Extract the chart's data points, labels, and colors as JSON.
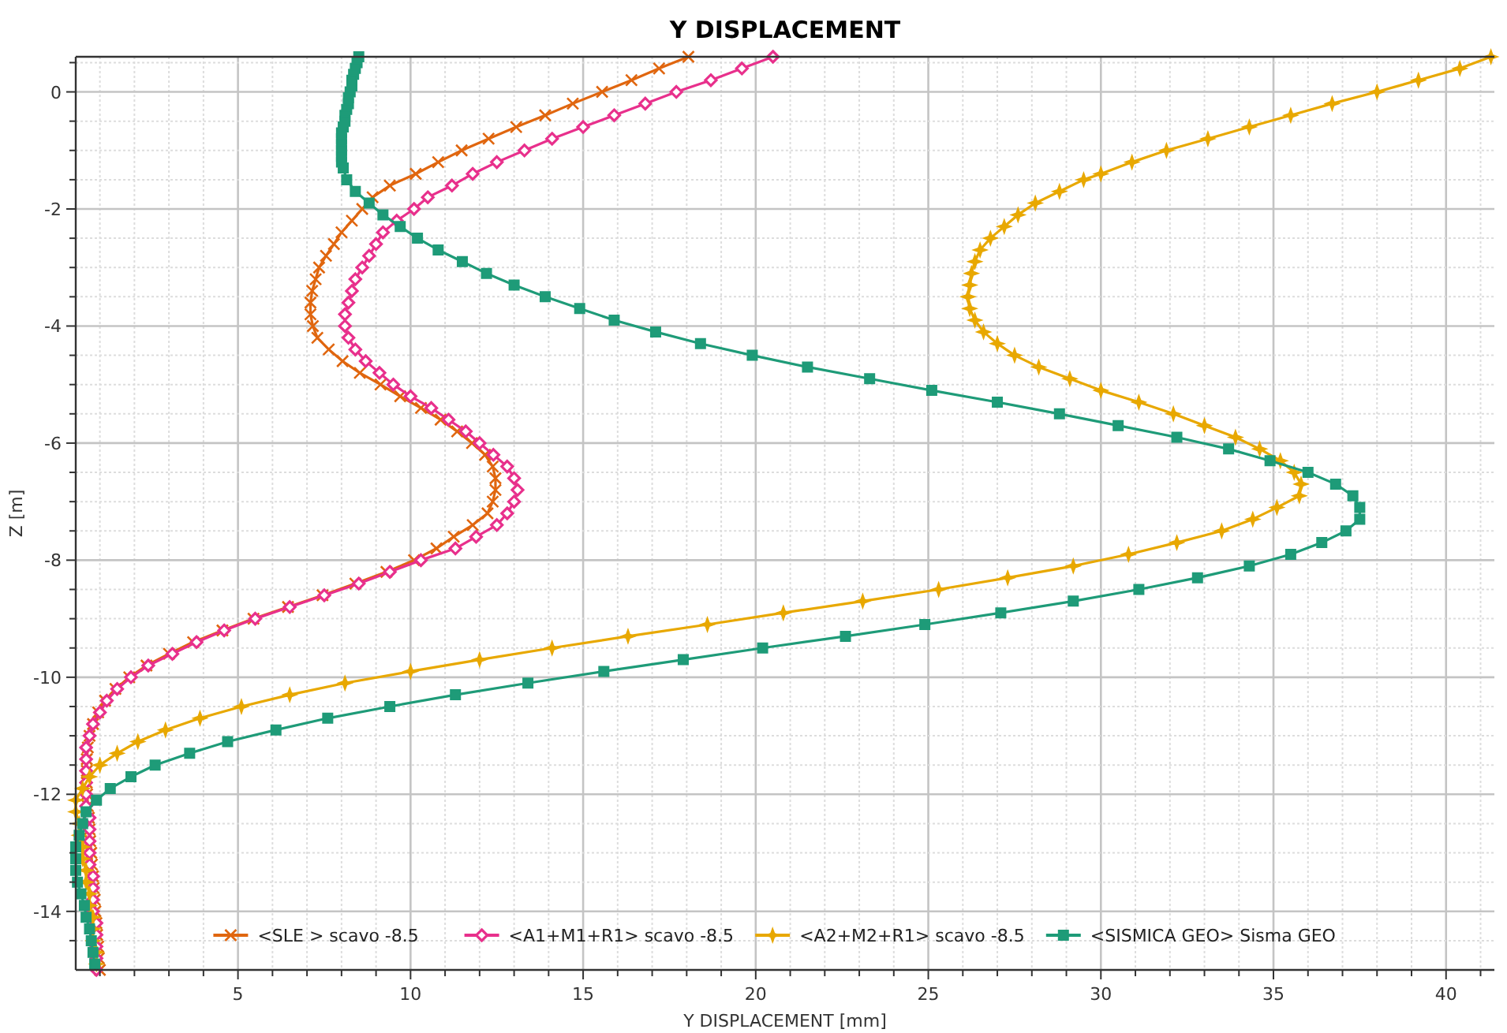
{
  "chart_data": {
    "type": "line",
    "title": "Y DISPLACEMENT",
    "xlabel": "Y DISPLACEMENT [mm]",
    "ylabel": "Z [m]",
    "xlim": [
      0.3,
      41.4
    ],
    "ylim": [
      -15,
      0.6
    ],
    "xticks": [
      {
        "value": 1,
        "label": null
      },
      {
        "value": 2,
        "label": null
      },
      {
        "value": 3,
        "label": null
      },
      {
        "value": 4,
        "label": null
      },
      5,
      {
        "value": 6,
        "label": null
      },
      {
        "value": 7,
        "label": null
      },
      {
        "value": 8,
        "label": null
      },
      {
        "value": 9,
        "label": null
      },
      10,
      {
        "value": 11,
        "label": null
      },
      {
        "value": 12,
        "label": null
      },
      {
        "value": 13,
        "label": null
      },
      {
        "value": 14,
        "label": null
      },
      15,
      {
        "value": 16,
        "label": null
      },
      {
        "value": 17,
        "label": null
      },
      {
        "value": 18,
        "label": null
      },
      {
        "value": 19,
        "label": null
      },
      20,
      {
        "value": 21,
        "label": null
      },
      {
        "value": 22,
        "label": null
      },
      {
        "value": 23,
        "label": null
      },
      {
        "value": 24,
        "label": null
      },
      25,
      {
        "value": 26,
        "label": null
      },
      {
        "value": 27,
        "label": null
      },
      {
        "value": 28,
        "label": null
      },
      {
        "value": 29,
        "label": null
      },
      30,
      {
        "value": 31,
        "label": null
      },
      {
        "value": 32,
        "label": null
      },
      {
        "value": 33,
        "label": null
      },
      {
        "value": 34,
        "label": null
      },
      35,
      {
        "value": 36,
        "label": null
      },
      {
        "value": 37,
        "label": null
      },
      {
        "value": 38,
        "label": null
      },
      {
        "value": 39,
        "label": null
      },
      40,
      {
        "value": 41,
        "label": null
      }
    ],
    "yticks": [
      {
        "value": -14.5,
        "label": null
      },
      -14,
      {
        "value": -13.5,
        "label": null
      },
      {
        "value": -13,
        "label": null
      },
      {
        "value": -12.5,
        "label": null
      },
      -12,
      {
        "value": -11.5,
        "label": null
      },
      {
        "value": -11,
        "label": null
      },
      {
        "value": -10.5,
        "label": null
      },
      -10,
      {
        "value": -9.5,
        "label": null
      },
      {
        "value": -9,
        "label": null
      },
      {
        "value": -8.5,
        "label": null
      },
      -8,
      {
        "value": -7.5,
        "label": null
      },
      {
        "value": -7,
        "label": null
      },
      {
        "value": -6.5,
        "label": null
      },
      -6,
      {
        "value": -5.5,
        "label": null
      },
      {
        "value": -5,
        "label": null
      },
      {
        "value": -4.5,
        "label": null
      },
      -4,
      {
        "value": -3.5,
        "label": null
      },
      {
        "value": -3,
        "label": null
      },
      {
        "value": -2.5,
        "label": null
      },
      -2,
      {
        "value": -1.5,
        "label": null
      },
      {
        "value": -1,
        "label": null
      },
      {
        "value": -0.5,
        "label": null
      },
      0,
      {
        "value": 0.5,
        "label": null
      }
    ],
    "grid": true,
    "legend": "bottom",
    "line_style": "solid",
    "series": [
      {
        "name": "<SLE > scavo -8.5",
        "color": "#e0660f",
        "marker": "cross",
        "x": [
          18.05,
          17.2,
          16.4,
          15.55,
          14.7,
          13.9,
          13.06,
          12.26,
          11.48,
          10.8,
          10.15,
          9.4,
          8.9,
          8.6,
          8.3,
          8.0,
          7.78,
          7.55,
          7.35,
          7.25,
          7.15,
          7.1,
          7.1,
          7.17,
          7.3,
          7.63,
          8.03,
          8.53,
          9.13,
          9.7,
          10.3,
          10.87,
          11.35,
          11.78,
          12.16,
          12.38,
          12.46,
          12.46,
          12.38,
          12.23,
          11.8,
          11.25,
          10.75,
          10.1,
          9.3,
          8.4,
          7.45,
          6.45,
          5.45,
          4.55,
          3.7,
          3.0,
          2.35,
          1.85,
          1.45,
          1.15,
          0.95,
          0.8,
          0.7,
          0.65,
          0.62,
          0.62,
          0.62,
          0.63,
          0.65,
          0.68,
          0.7,
          0.72,
          0.75,
          0.77,
          0.8,
          0.82,
          0.85,
          0.87,
          0.9,
          0.92,
          0.95,
          0.97,
          1.0
        ],
        "values": [
          0.6,
          0.4,
          0.2,
          0,
          -0.2,
          -0.4,
          -0.6,
          -0.8,
          -1.0,
          -1.2,
          -1.4,
          -1.6,
          -1.8,
          -2.0,
          -2.2,
          -2.4,
          -2.6,
          -2.8,
          -3.0,
          -3.2,
          -3.4,
          -3.6,
          -3.8,
          -4.0,
          -4.2,
          -4.4,
          -4.6,
          -4.8,
          -5.0,
          -5.2,
          -5.4,
          -5.6,
          -5.8,
          -6.0,
          -6.2,
          -6.4,
          -6.6,
          -6.8,
          -7.0,
          -7.2,
          -7.4,
          -7.6,
          -7.8,
          -8.0,
          -8.2,
          -8.4,
          -8.6,
          -8.8,
          -9.0,
          -9.2,
          -9.4,
          -9.6,
          -9.8,
          -10.0,
          -10.2,
          -10.4,
          -10.6,
          -10.8,
          -11.0,
          -11.2,
          -11.4,
          -11.6,
          -11.8,
          -12.0,
          -12.2,
          -12.4,
          -12.6,
          -12.8,
          -13.0,
          -13.2,
          -13.4,
          -13.6,
          -13.8,
          -14.0,
          -14.2,
          -14.4,
          -14.6,
          -14.8,
          -15.0
        ]
      },
      {
        "name": "<A1+M1+R1> scavo -8.5",
        "color": "#e8308c",
        "marker": "diamond",
        "x": [
          20.5,
          19.6,
          18.7,
          17.7,
          16.8,
          15.9,
          15.0,
          14.1,
          13.3,
          12.5,
          11.8,
          11.2,
          10.5,
          10.1,
          9.6,
          9.2,
          9.0,
          8.8,
          8.6,
          8.4,
          8.3,
          8.2,
          8.1,
          8.1,
          8.2,
          8.4,
          8.7,
          9.1,
          9.5,
          10.0,
          10.6,
          11.1,
          11.6,
          12.0,
          12.4,
          12.8,
          13.0,
          13.1,
          13.0,
          12.8,
          12.5,
          11.9,
          11.3,
          10.3,
          9.4,
          8.5,
          7.5,
          6.5,
          5.5,
          4.6,
          3.8,
          3.1,
          2.4,
          1.9,
          1.5,
          1.2,
          1.0,
          0.8,
          0.7,
          0.6,
          0.6,
          0.6,
          0.6,
          0.6,
          0.6,
          0.7,
          0.7,
          0.7,
          0.7,
          0.7,
          0.8,
          0.8,
          0.8,
          0.8,
          0.9,
          0.9,
          0.9,
          0.9,
          0.9
        ],
        "values": [
          0.6,
          0.4,
          0.2,
          0,
          -0.2,
          -0.4,
          -0.6,
          -0.8,
          -1.0,
          -1.2,
          -1.4,
          -1.6,
          -1.8,
          -2.0,
          -2.2,
          -2.4,
          -2.6,
          -2.8,
          -3.0,
          -3.2,
          -3.4,
          -3.6,
          -3.8,
          -4.0,
          -4.2,
          -4.4,
          -4.6,
          -4.8,
          -5.0,
          -5.2,
          -5.4,
          -5.6,
          -5.8,
          -6.0,
          -6.2,
          -6.4,
          -6.6,
          -6.8,
          -7.0,
          -7.2,
          -7.4,
          -7.6,
          -7.8,
          -8.0,
          -8.2,
          -8.4,
          -8.6,
          -8.8,
          -9.0,
          -9.2,
          -9.4,
          -9.6,
          -9.8,
          -10.0,
          -10.2,
          -10.4,
          -10.6,
          -10.8,
          -11.0,
          -11.2,
          -11.4,
          -11.6,
          -11.8,
          -12.0,
          -12.2,
          -12.4,
          -12.6,
          -12.8,
          -13.0,
          -13.2,
          -13.4,
          -13.6,
          -13.8,
          -14.0,
          -14.2,
          -14.4,
          -14.6,
          -14.8,
          -15.0
        ]
      },
      {
        "name": "<A2+M2+R1> scavo -8.5",
        "color": "#e8a800",
        "marker": "star",
        "x": [
          41.3,
          40.4,
          39.2,
          38.0,
          36.7,
          35.5,
          34.3,
          33.1,
          31.9,
          30.9,
          30.0,
          29.5,
          28.8,
          28.1,
          27.6,
          27.2,
          26.8,
          26.5,
          26.35,
          26.25,
          26.2,
          26.15,
          26.2,
          26.35,
          26.6,
          27.0,
          27.5,
          28.2,
          29.1,
          30.0,
          31.1,
          32.1,
          33.0,
          33.9,
          34.6,
          35.2,
          35.6,
          35.8,
          35.75,
          35.1,
          34.4,
          33.5,
          32.2,
          30.8,
          29.2,
          27.3,
          25.3,
          23.1,
          20.8,
          18.6,
          16.3,
          14.1,
          12.0,
          10.0,
          8.1,
          6.5,
          5.1,
          3.9,
          2.9,
          2.1,
          1.5,
          1.0,
          0.7,
          0.5,
          0.3,
          0.3,
          0.4,
          0.4,
          0.5,
          0.5,
          0.6,
          0.6,
          0.7,
          0.7,
          0.8,
          0.8,
          0.8,
          0.9,
          0.9
        ],
        "values": [
          0.6,
          0.4,
          0.2,
          0,
          -0.2,
          -0.4,
          -0.6,
          -0.8,
          -1.0,
          -1.2,
          -1.4,
          -1.5,
          -1.7,
          -1.9,
          -2.1,
          -2.3,
          -2.5,
          -2.7,
          -2.9,
          -3.1,
          -3.3,
          -3.5,
          -3.7,
          -3.9,
          -4.1,
          -4.3,
          -4.5,
          -4.7,
          -4.9,
          -5.1,
          -5.3,
          -5.5,
          -5.7,
          -5.9,
          -6.1,
          -6.3,
          -6.5,
          -6.7,
          -6.9,
          -7.1,
          -7.3,
          -7.5,
          -7.7,
          -7.9,
          -8.1,
          -8.3,
          -8.5,
          -8.7,
          -8.9,
          -9.1,
          -9.3,
          -9.5,
          -9.7,
          -9.9,
          -10.1,
          -10.3,
          -10.5,
          -10.7,
          -10.9,
          -11.1,
          -11.3,
          -11.5,
          -11.7,
          -11.9,
          -12.1,
          -12.3,
          -12.5,
          -12.7,
          -12.9,
          -13.1,
          -13.3,
          -13.5,
          -13.7,
          -13.9,
          -14.1,
          -14.3,
          -14.5,
          -14.7,
          -14.9
        ]
      },
      {
        "name": "<SISMICA GEO> Sisma GEO",
        "color": "#1e9b78",
        "marker": "square",
        "x": [
          8.5,
          8.45,
          8.4,
          8.35,
          8.3,
          8.3,
          8.25,
          8.2,
          8.2,
          8.15,
          8.1,
          8.1,
          8.05,
          8.0,
          8.0,
          8.0,
          8.0,
          8.0,
          8.0,
          8.05,
          8.15,
          8.4,
          8.8,
          9.2,
          9.7,
          10.2,
          10.8,
          11.5,
          12.2,
          13.0,
          13.9,
          14.9,
          15.9,
          17.1,
          18.4,
          19.9,
          21.5,
          23.3,
          25.1,
          27.0,
          28.8,
          30.5,
          32.2,
          33.7,
          34.9,
          36.0,
          36.8,
          37.3,
          37.5,
          37.5,
          37.1,
          36.4,
          35.5,
          34.3,
          32.8,
          31.1,
          29.2,
          27.1,
          24.9,
          22.6,
          20.2,
          17.9,
          15.6,
          13.4,
          11.3,
          9.4,
          7.6,
          6.1,
          4.7,
          3.6,
          2.6,
          1.9,
          1.3,
          0.9,
          0.6,
          0.5,
          0.4,
          0.3,
          0.3,
          0.3,
          0.35,
          0.45,
          0.55,
          0.6,
          0.7,
          0.75,
          0.8,
          0.85
        ],
        "values": [
          0.6,
          0.5,
          0.4,
          0.3,
          0.2,
          0.1,
          0,
          -0.1,
          -0.2,
          -0.3,
          -0.4,
          -0.5,
          -0.6,
          -0.7,
          -0.8,
          -0.9,
          -1.0,
          -1.1,
          -1.2,
          -1.3,
          -1.5,
          -1.7,
          -1.9,
          -2.1,
          -2.3,
          -2.5,
          -2.7,
          -2.9,
          -3.1,
          -3.3,
          -3.5,
          -3.7,
          -3.9,
          -4.1,
          -4.3,
          -4.5,
          -4.7,
          -4.9,
          -5.1,
          -5.3,
          -5.5,
          -5.7,
          -5.9,
          -6.1,
          -6.3,
          -6.5,
          -6.7,
          -6.9,
          -7.1,
          -7.3,
          -7.5,
          -7.7,
          -7.9,
          -8.1,
          -8.3,
          -8.5,
          -8.7,
          -8.9,
          -9.1,
          -9.3,
          -9.5,
          -9.7,
          -9.9,
          -10.1,
          -10.3,
          -10.5,
          -10.7,
          -10.9,
          -11.1,
          -11.3,
          -11.5,
          -11.7,
          -11.9,
          -12.1,
          -12.3,
          -12.5,
          -12.7,
          -12.9,
          -13.1,
          -13.3,
          -13.5,
          -13.7,
          -13.9,
          -14.1,
          -14.3,
          -14.5,
          -14.7,
          -14.9
        ]
      }
    ]
  }
}
